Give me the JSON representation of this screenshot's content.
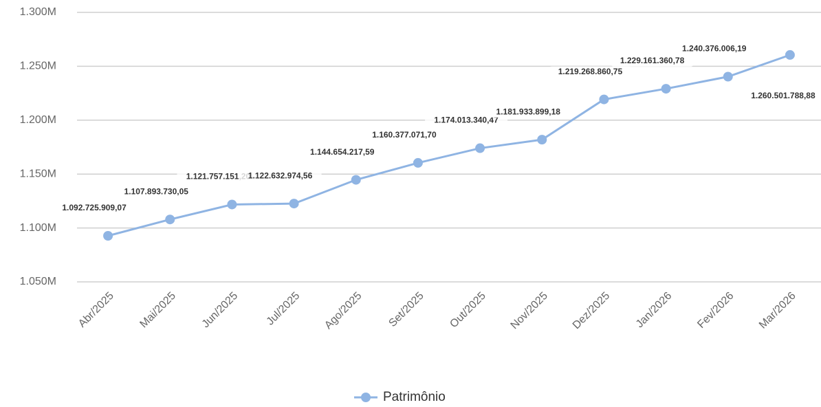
{
  "chart_data": {
    "type": "line",
    "categories": [
      "Abr/2025",
      "Mai/2025",
      "Jun/2025",
      "Jul/2025",
      "Ago/2025",
      "Set/2025",
      "Out/2025",
      "Nov/2025",
      "Dez/2025",
      "Jan/2026",
      "Fev/2026",
      "Mar/2026"
    ],
    "series": [
      {
        "name": "Patrimônio",
        "color": "#8fb4e3",
        "values": [
          1092725909.07,
          1107893730.05,
          1121757151.2,
          1122632974.56,
          1144654217.59,
          1160377071.7,
          1174013340.47,
          1181933899.18,
          1219268860.75,
          1229161360.78,
          1240376006.19,
          1260501788.88
        ],
        "value_labels": [
          "1.092.725.909,07",
          "1.107.893.730,05",
          "1.121.757.151,20",
          "1.122.632.974,56",
          "1.144.654.217,59",
          "1.160.377.071,70",
          "1.174.013.340,47",
          "1.181.933.899,18",
          "1.219.268.860,75",
          "1.229.161.360,78",
          "1.240.376.006,19",
          "1.260.501.788,88"
        ]
      }
    ],
    "ylim": [
      1050000000,
      1300000000
    ],
    "yticks": [
      {
        "value": 1050000000,
        "label": "1.050M"
      },
      {
        "value": 1100000000,
        "label": "1.100M"
      },
      {
        "value": 1150000000,
        "label": "1.150M"
      },
      {
        "value": 1200000000,
        "label": "1.200M"
      },
      {
        "value": 1250000000,
        "label": "1.250M"
      },
      {
        "value": 1300000000,
        "label": "1.300M"
      }
    ],
    "grid": true,
    "legend": "bottom"
  }
}
